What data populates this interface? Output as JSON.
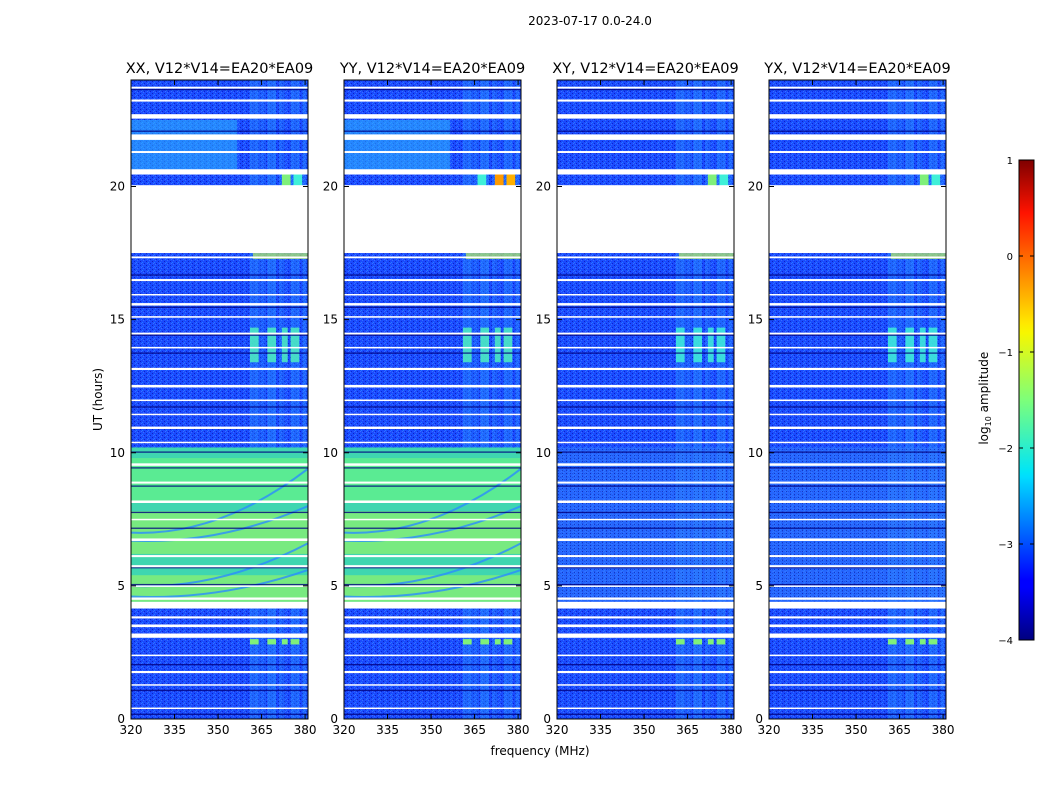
{
  "suptitle": "2023-07-17 0.0-24.0",
  "chart_data": {
    "type": "heatmap",
    "xlabel": "frequency (MHz)",
    "ylabel": "UT (hours)",
    "xlim": [
      320,
      381
    ],
    "ylim": [
      0,
      24
    ],
    "xticks": [
      "320",
      "335",
      "350",
      "365",
      "380"
    ],
    "xtick_values": [
      320,
      335,
      350,
      365,
      380
    ],
    "yticks": [
      "0",
      "5",
      "10",
      "15",
      "20"
    ],
    "ytick_values": [
      0,
      5,
      10,
      15,
      20
    ],
    "panels": [
      {
        "title": "XX, V12*V14=EA20*EA09",
        "kind": "auto",
        "show_ylabel": true,
        "show_xlabel": false
      },
      {
        "title": "YY, V12*V14=EA20*EA09",
        "kind": "auto",
        "show_ylabel": false,
        "show_xlabel": true
      },
      {
        "title": "XY, V12*V14=EA20*EA09",
        "kind": "cross",
        "show_ylabel": false,
        "show_xlabel": false
      },
      {
        "title": "YX, V12*V14=EA20*EA09",
        "kind": "cross",
        "show_ylabel": false,
        "show_xlabel": false
      }
    ],
    "data_gaps_ut": [
      [
        17.5,
        20.0
      ]
    ],
    "colorbar": {
      "label": "log10 amplitude",
      "label_main": "log",
      "label_sub": "10",
      "label_rest": " amplitude",
      "range": [
        -4,
        1
      ],
      "ticks": [
        "1",
        "0",
        "−1",
        "−2",
        "−3",
        "−4"
      ],
      "tick_values": [
        1,
        0,
        -1,
        -2,
        -3,
        -4
      ],
      "colormap": "jet"
    }
  }
}
